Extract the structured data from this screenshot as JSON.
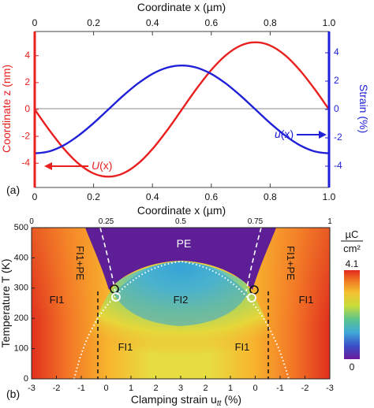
{
  "chart_data": [
    {
      "type": "line",
      "panel_label": "(a)",
      "x": [
        0,
        0.05,
        0.1,
        0.15,
        0.2,
        0.25,
        0.3,
        0.35,
        0.4,
        0.45,
        0.5,
        0.55,
        0.6,
        0.65,
        0.7,
        0.75,
        0.8,
        0.85,
        0.9,
        0.95,
        1.0
      ],
      "xlabel_top": "Coordinate x (µm)",
      "xlabel_bottom": "Coordinate x (µm)",
      "xlim": [
        0,
        1
      ],
      "xticks": [
        0,
        0.2,
        0.4,
        0.6,
        0.8,
        1.0
      ],
      "xtick_labels": [
        "0",
        "0.2",
        "0.4",
        "0.6",
        "0.8",
        "1.0"
      ],
      "left_axis": {
        "label": "Coordinate z (nm)",
        "color": "#e8201f",
        "ylim": [
          -5.8,
          5.8
        ],
        "ticks": [
          -4,
          -2,
          0,
          2,
          4
        ]
      },
      "right_axis": {
        "label": "Strain (%)",
        "color": "#2020d8",
        "ylim": [
          -5.5,
          5.5
        ],
        "ticks": [
          -4,
          -2,
          0,
          2,
          4
        ]
      },
      "series": [
        {
          "name": "U(x)",
          "axis": "left",
          "color": "#e8201f",
          "values": [
            0,
            -1.55,
            -2.94,
            -4.05,
            -4.76,
            -5.0,
            -4.76,
            -4.05,
            -2.94,
            -1.55,
            0,
            1.55,
            2.94,
            4.05,
            4.76,
            5.0,
            4.76,
            4.05,
            2.94,
            1.55,
            0
          ]
        },
        {
          "name": "u(x)",
          "axis": "right",
          "color": "#2020d8",
          "values": [
            -3.1,
            -2.95,
            -2.51,
            -1.82,
            -0.96,
            0,
            0.96,
            1.82,
            2.51,
            2.95,
            3.1,
            2.95,
            2.51,
            1.82,
            0.96,
            0,
            -0.96,
            -1.82,
            -2.51,
            -2.95,
            -3.1
          ]
        }
      ],
      "annotations": [
        {
          "text": "U",
          "suffix": "(x)",
          "color": "#e8201f",
          "arrow": "left"
        },
        {
          "text": "u",
          "suffix": "(x)",
          "color": "#2020d8",
          "arrow": "right"
        }
      ]
    },
    {
      "type": "heatmap",
      "panel_label": "(b)",
      "xlabel": "Clamping strain u",
      "xlabel_sub": "tt",
      "xlabel_unit": " (%)",
      "ylabel": "Temperature T (K)",
      "xlim": [
        -3,
        3
      ],
      "xtick_labels": [
        "-3",
        "-2",
        "-1",
        "0",
        "1",
        "2",
        "3",
        "2",
        "1",
        "0",
        "-1",
        "-2",
        "-3"
      ],
      "top_axis_tick_labels": [
        "0",
        "0.25",
        "0.5",
        "0.75",
        "1"
      ],
      "top_axis_ticks": [
        0,
        0.25,
        0.5,
        0.75,
        1
      ],
      "ylim": [
        0,
        500
      ],
      "yticks": [
        0,
        100,
        200,
        300,
        400,
        500
      ],
      "colorbar": {
        "unit_top": "µC",
        "unit_bottom": "cm²",
        "max_label": "4.1",
        "min_label": "0",
        "min": 0,
        "max": 4.1
      },
      "regions": [
        "PE",
        "FI1+PE",
        "FI1+PE",
        "FI1",
        "FI1",
        "FI2",
        "FI1",
        "FI1"
      ],
      "markers": [
        "open black circle",
        "open black circle",
        "open white circle",
        "open white circle"
      ]
    }
  ]
}
